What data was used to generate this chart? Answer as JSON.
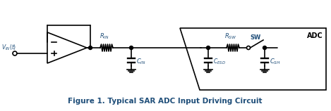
{
  "figure_caption": "Figure 1. Typical SAR ADC Input Driving Circuit",
  "caption_color": "#1F4E79",
  "bg_color": "#ffffff",
  "line_color": "#000000",
  "label_color": "#1F4E79",
  "adc_box_color": "#000000",
  "figsize": [
    4.69,
    1.58
  ],
  "dpi": 100
}
